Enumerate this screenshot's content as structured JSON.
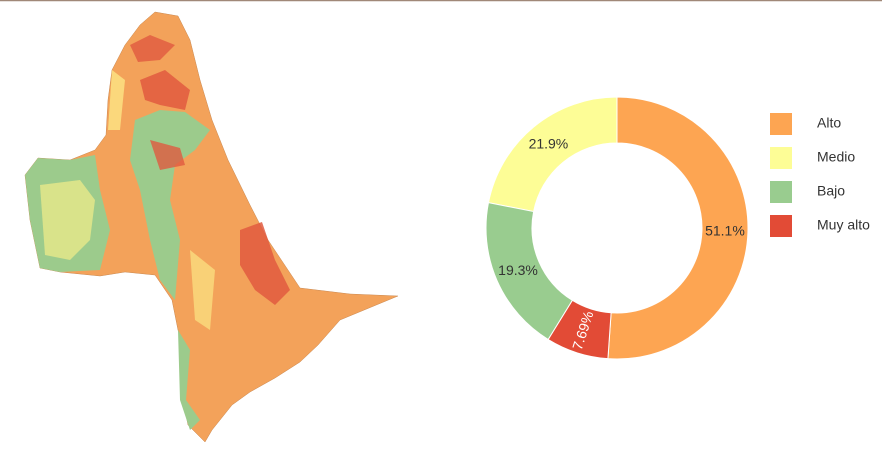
{
  "chart_data": {
    "type": "donut",
    "categories": [
      "Alto",
      "Medio",
      "Bajo",
      "Muy alto"
    ],
    "values": [
      51.1,
      21.9,
      19.3,
      7.69
    ],
    "value_labels": [
      "51.1%",
      "21.9%",
      "19.3%",
      "7.69%"
    ],
    "colors": [
      "#fda552",
      "#fdfd96",
      "#99cc8f",
      "#e24b36"
    ],
    "direction": "counterclockwise",
    "legend": "right"
  }
}
